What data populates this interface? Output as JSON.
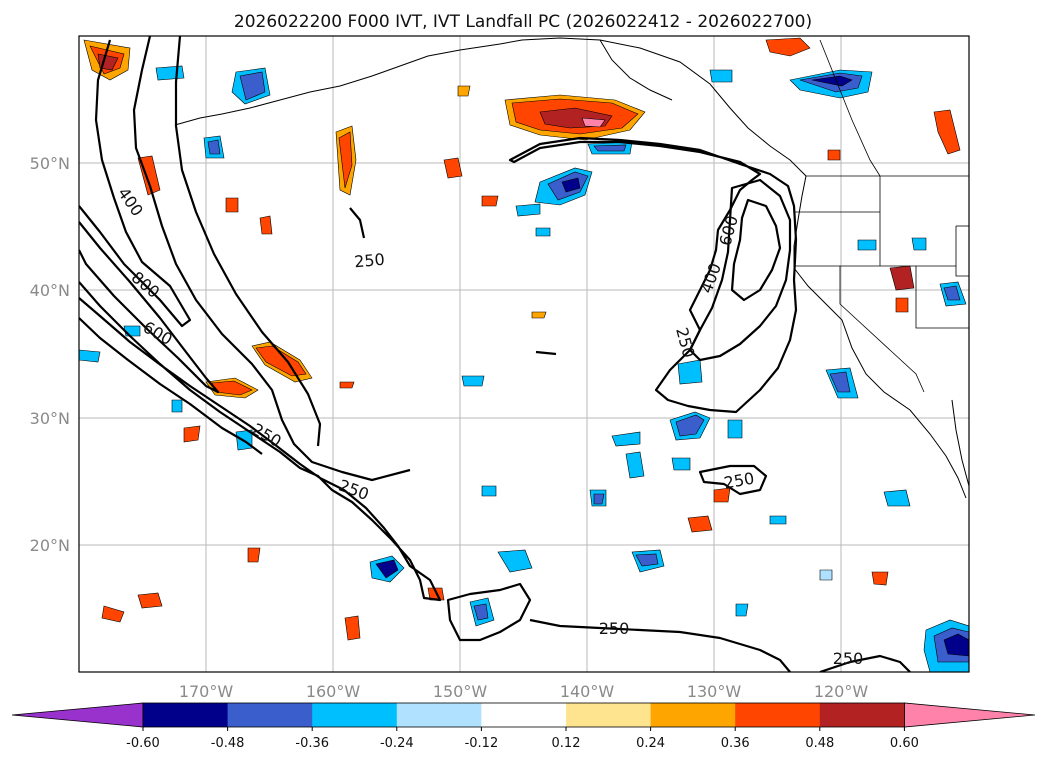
{
  "title": "2026022200 F000 IVT, IVT Landfall PC (2026022412 - 2026022700)",
  "axes": {
    "x_ticks": [
      "170°W",
      "160°W",
      "150°W",
      "140°W",
      "130°W",
      "120°W"
    ],
    "y_ticks": [
      "50°N",
      "40°N",
      "30°N",
      "20°N"
    ]
  },
  "contour_labels": [
    {
      "text": "400",
      "name": "ivt-contour-label-400-west"
    },
    {
      "text": "800",
      "name": "ivt-contour-label-800-west"
    },
    {
      "text": "600",
      "name": "ivt-contour-label-600-west"
    },
    {
      "text": "250",
      "name": "ivt-contour-label-250-diag-1"
    },
    {
      "text": "250",
      "name": "ivt-contour-label-250-diag-2"
    },
    {
      "text": "250",
      "name": "ivt-contour-label-250-north"
    },
    {
      "text": "250",
      "name": "ivt-contour-label-250-coast"
    },
    {
      "text": "400",
      "name": "ivt-contour-label-400-coast"
    },
    {
      "text": "600",
      "name": "ivt-contour-label-600-coast"
    },
    {
      "text": "250",
      "name": "ivt-contour-label-250-mid"
    },
    {
      "text": "250",
      "name": "ivt-contour-label-250-south"
    },
    {
      "text": "250",
      "name": "ivt-contour-label-250-southeast"
    }
  ],
  "colorbar": {
    "levels": [
      "-0.60",
      "-0.48",
      "-0.36",
      "-0.24",
      "-0.12",
      "0.12",
      "0.24",
      "0.36",
      "0.48",
      "0.60"
    ],
    "colors": [
      "#9932cc",
      "#00008b",
      "#3a5fcd",
      "#00bfff",
      "#b0e2ff",
      "#ffffff",
      "#ffe48f",
      "#ffa500",
      "#ff4500",
      "#b22222",
      "#ff82ab"
    ]
  }
}
